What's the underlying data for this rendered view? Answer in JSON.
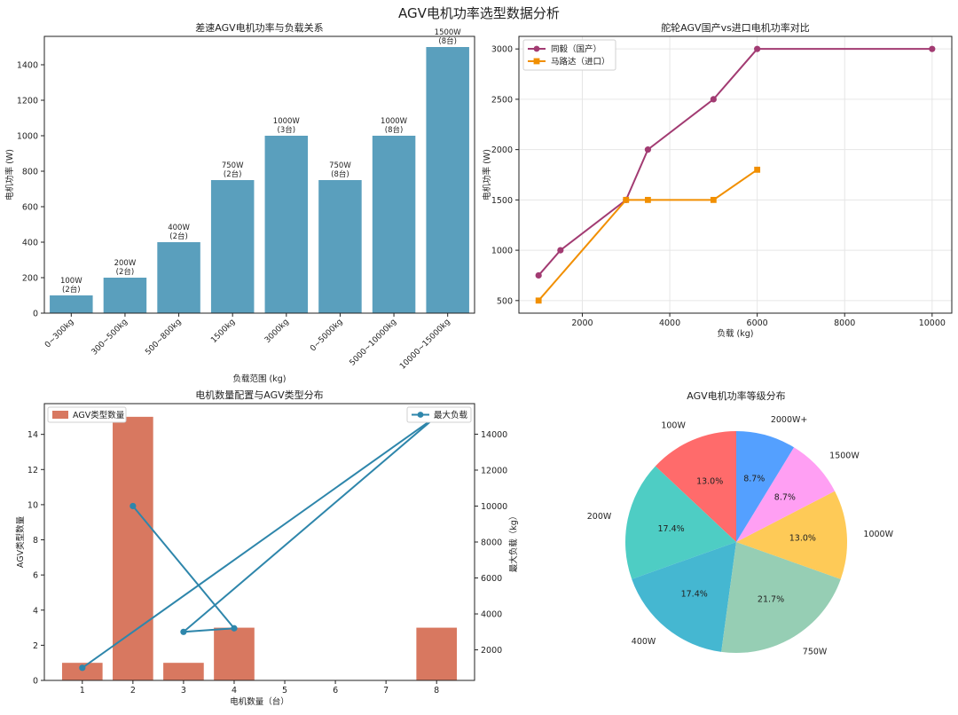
{
  "suptitle": "AGV电机功率选型数据分析",
  "chart_data": [
    {
      "type": "bar",
      "title": "差速AGV电机功率与负载关系",
      "xlabel": "负载范围 (kg)",
      "ylabel": "电机功率 (W)",
      "ylim": [
        0,
        1560
      ],
      "yticks": [
        0,
        200,
        400,
        600,
        800,
        1000,
        1200,
        1400
      ],
      "categories": [
        "0~300kg",
        "300~500kg",
        "500~800kg",
        "1500kg",
        "3000kg",
        "0~5000kg",
        "5000~10000kg",
        "10000~15000kg"
      ],
      "values": [
        100,
        200,
        400,
        750,
        1000,
        750,
        1000,
        1500
      ],
      "labels_top": [
        "100W",
        "200W",
        "400W",
        "750W",
        "1000W",
        "750W",
        "1000W",
        "1500W"
      ],
      "labels_bottom": [
        "(2台)",
        "(2台)",
        "(2台)",
        "(2台)",
        "(3台)",
        "(8台)",
        "(8台)",
        "(8台)"
      ],
      "color": "#5a9fbd"
    },
    {
      "type": "line",
      "title": "舵轮AGV国产vs进口电机功率对比",
      "xlabel": "负载 (kg)",
      "ylabel": "电机功率 (W)",
      "xlim": [
        550,
        10450
      ],
      "ylim": [
        375,
        3125
      ],
      "xticks": [
        2000,
        4000,
        6000,
        8000,
        10000
      ],
      "yticks": [
        500,
        1000,
        1500,
        2000,
        2500,
        3000
      ],
      "grid": true,
      "legend_position": "top-left",
      "series": [
        {
          "name": "同毅（国产）",
          "marker": "circle",
          "color": "#a23b72",
          "x": [
            1000,
            1500,
            3000,
            3500,
            5000,
            6000,
            10000
          ],
          "y": [
            750,
            1000,
            1500,
            2000,
            2500,
            3000,
            3000
          ]
        },
        {
          "name": "马路达（进口）",
          "marker": "square",
          "color": "#f18f01",
          "x": [
            1000,
            3000,
            3500,
            5000,
            6000
          ],
          "y": [
            500,
            1500,
            1500,
            1500,
            1800
          ]
        }
      ]
    },
    {
      "type": "bar+line",
      "title": "电机数量配置与AGV类型分布",
      "xlabel": "电机数量（台）",
      "ylabel_left": "AGV类型数量",
      "ylabel_right": "最大负载（kg）",
      "xlim": [
        0.25,
        8.75
      ],
      "xticks": [
        1,
        2,
        3,
        4,
        5,
        6,
        7,
        8
      ],
      "ylim_left": [
        0,
        15.75
      ],
      "yticks_left": [
        0,
        2,
        4,
        6,
        8,
        10,
        12,
        14
      ],
      "ylim_right": [
        300,
        15700
      ],
      "yticks_right": [
        2000,
        4000,
        6000,
        8000,
        10000,
        12000,
        14000
      ],
      "bar_series": {
        "name": "AGV类型数量",
        "color": "#c73e1d",
        "x": [
          1,
          2,
          3,
          4,
          8
        ],
        "values": [
          1,
          15,
          1,
          3,
          3
        ]
      },
      "line_series": {
        "name": "最大负载",
        "color": "#2e86ab",
        "x": [
          1,
          8,
          3,
          4,
          2
        ],
        "values": [
          1000,
          15000,
          3000,
          3200,
          10000
        ]
      }
    },
    {
      "type": "pie",
      "title": "AGV电机功率等级分布",
      "labels": [
        "100W",
        "200W",
        "400W",
        "750W",
        "1000W",
        "1500W",
        "2000W+"
      ],
      "values": [
        13.0,
        17.4,
        17.4,
        21.7,
        13.0,
        8.7,
        8.7
      ],
      "pct_labels": [
        "13.0%",
        "17.4%",
        "17.4%",
        "21.7%",
        "13.0%",
        "8.7%",
        "8.7%"
      ],
      "colors": [
        "#ff6b6b",
        "#4ecdc4",
        "#45b7d1",
        "#96ceb4",
        "#feca57",
        "#ff9ff3",
        "#54a0ff"
      ]
    }
  ]
}
